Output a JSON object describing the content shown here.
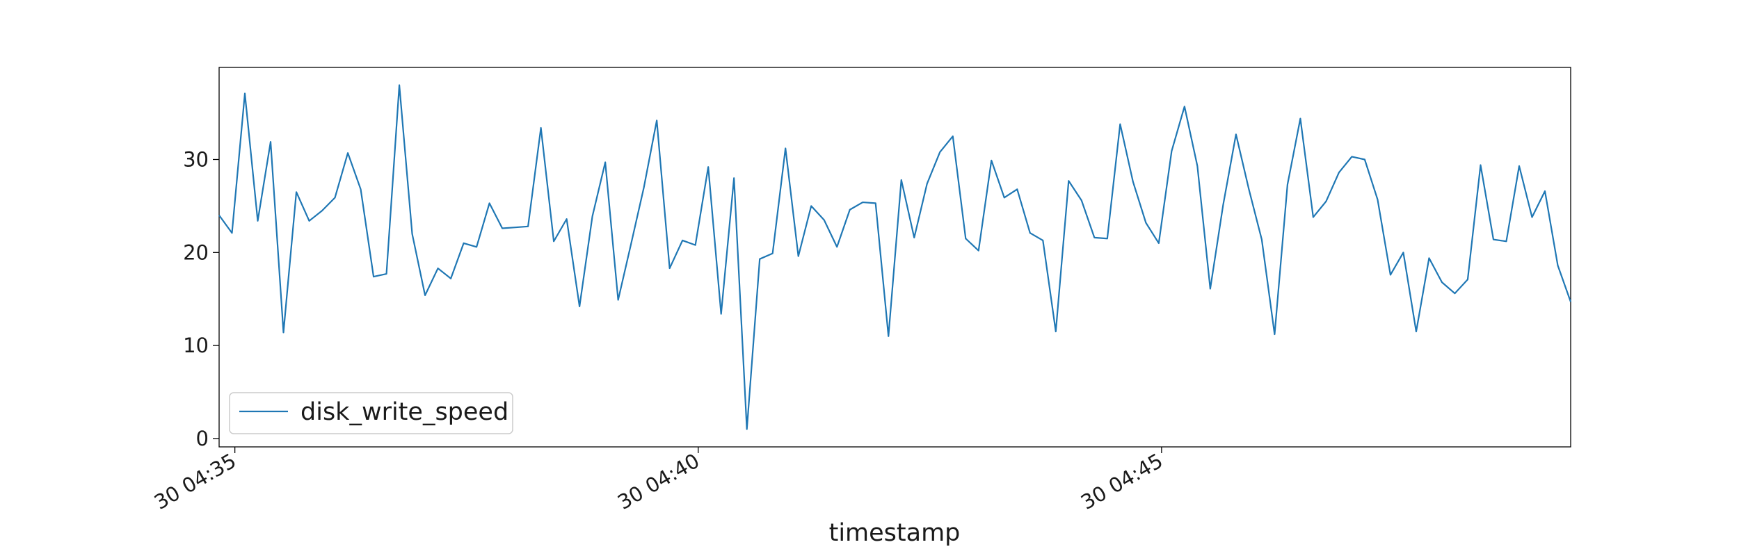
{
  "chart_data": {
    "type": "line",
    "title": "",
    "xlabel": "timestamp",
    "ylabel": "",
    "x_tick_labels": [
      "30 04:35",
      "30 04:40",
      "30 04:45"
    ],
    "x_tick_minutes": [
      35,
      40,
      45
    ],
    "y_ticks": [
      0,
      10,
      20,
      30
    ],
    "ylim": [
      -0.9,
      39.9
    ],
    "x_start_minute": 34.83,
    "x_step_minutes": 0.1389,
    "grid": false,
    "legend_position": "lower-left",
    "color": "#1f77b4",
    "series": [
      {
        "name": "disk_write_speed",
        "values": [
          24.0,
          22.1,
          37.1,
          23.4,
          31.9,
          11.4,
          26.5,
          23.4,
          24.5,
          25.9,
          30.7,
          26.8,
          17.4,
          17.7,
          38.0,
          22.0,
          15.4,
          18.3,
          17.2,
          21.0,
          20.6,
          25.3,
          22.6,
          22.7,
          22.8,
          33.4,
          21.2,
          23.6,
          14.2,
          23.9,
          29.7,
          14.9,
          20.9,
          27.0,
          34.2,
          18.3,
          21.3,
          20.8,
          29.2,
          13.4,
          28.0,
          1.0,
          19.3,
          19.9,
          31.2,
          19.6,
          25.0,
          23.5,
          20.6,
          24.6,
          25.4,
          25.3,
          11.0,
          27.8,
          21.6,
          27.4,
          30.8,
          32.5,
          21.5,
          20.2,
          29.9,
          25.9,
          26.8,
          22.1,
          21.3,
          11.5,
          27.7,
          25.6,
          21.6,
          21.5,
          33.8,
          27.6,
          23.2,
          21.0,
          30.9,
          35.7,
          29.3,
          16.1,
          25.1,
          32.7,
          26.8,
          21.4,
          11.2,
          27.3,
          34.4,
          23.8,
          25.5,
          28.6,
          30.3,
          30.0,
          25.7,
          17.6,
          20.0,
          11.5,
          19.4,
          16.8,
          15.6,
          17.1,
          29.4,
          21.4,
          21.2,
          29.3,
          23.8,
          26.6,
          18.6,
          14.7
        ]
      }
    ]
  }
}
